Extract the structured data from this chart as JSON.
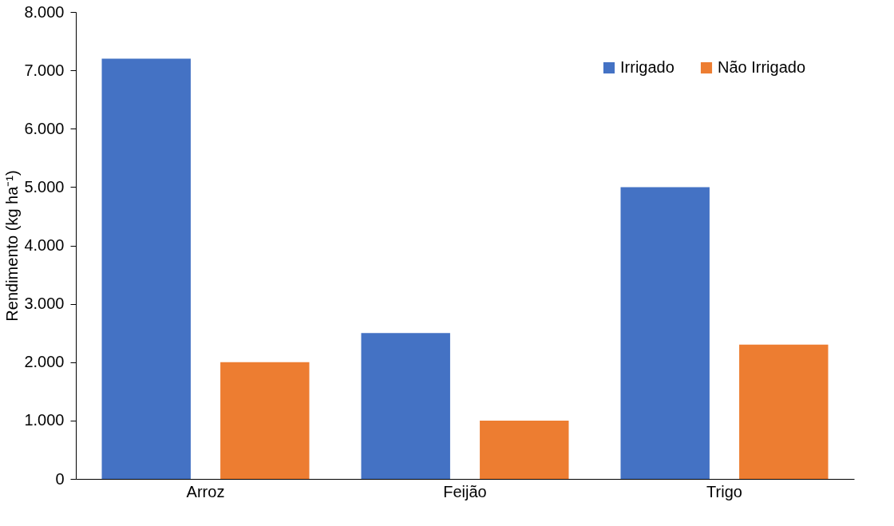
{
  "chart_data": {
    "type": "bar",
    "ylabel": "Rendimento (kg ha⁻¹)",
    "categories": [
      "Arroz",
      "Feijão",
      "Trigo"
    ],
    "series": [
      {
        "name": "Irrigado",
        "color": "#4472c4",
        "values": [
          7200,
          2500,
          5000
        ]
      },
      {
        "name": "Não Irrigado",
        "color": "#ed7d31",
        "values": [
          2000,
          1000,
          2300
        ]
      }
    ],
    "ylim": [
      0,
      8000
    ],
    "yticks": [
      {
        "value": 0,
        "label": "0"
      },
      {
        "value": 1000,
        "label": "1.000"
      },
      {
        "value": 2000,
        "label": "2.000"
      },
      {
        "value": 3000,
        "label": "3.000"
      },
      {
        "value": 4000,
        "label": "4.000"
      },
      {
        "value": 5000,
        "label": "5.000"
      },
      {
        "value": 6000,
        "label": "6.000"
      },
      {
        "value": 7000,
        "label": "7.000"
      },
      {
        "value": 8000,
        "label": "8.000"
      }
    ],
    "grid": false,
    "legend": "top right"
  }
}
